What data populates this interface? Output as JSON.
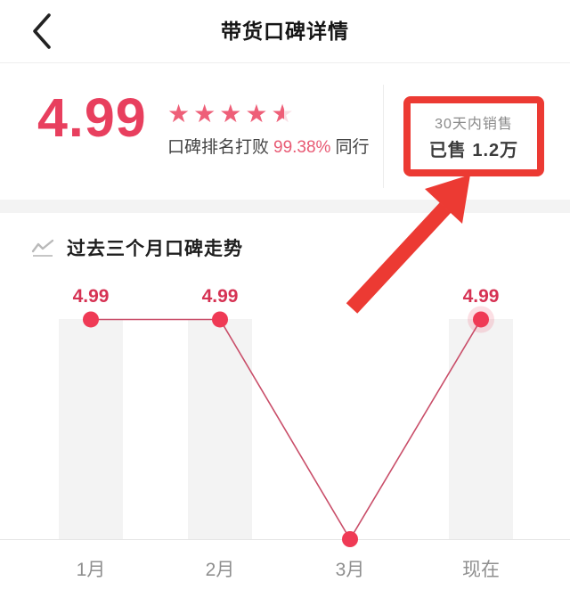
{
  "header": {
    "title": "带货口碑详情"
  },
  "score_card": {
    "score": "4.99",
    "stars": {
      "glyph": "★",
      "full": 4,
      "half": 1,
      "max": 5
    },
    "rank_text": {
      "prefix": "口碑排名打败",
      "highlight": "99.38%",
      "suffix": "同行"
    }
  },
  "sales_badge": {
    "label": "30天内销售",
    "value": "已售 1.2万"
  },
  "chart_data": {
    "type": "line",
    "title": "过去三个月口碑走势",
    "categories": [
      "1月",
      "2月",
      "3月",
      "现在"
    ],
    "values": [
      4.99,
      4.99,
      0,
      4.99
    ],
    "point_labels": [
      "4.99",
      "4.99",
      "",
      "4.99"
    ],
    "ylim": [
      0,
      5
    ],
    "grid": false,
    "legend": false,
    "bars_behind_points": true,
    "highlight_last_point": true,
    "annotation": {
      "type": "arrow",
      "points_to": "sales_badge"
    }
  },
  "colors": {
    "accent_pink": "#e83f5e",
    "star_pink": "#ee5f78",
    "star_empty": "#f9dde3",
    "rank_highlight": "#e85a74",
    "annotation_red": "#ec3a33",
    "chart_line": "#c94e69",
    "chart_point": "#ef3a55",
    "label_red": "#d63253"
  }
}
